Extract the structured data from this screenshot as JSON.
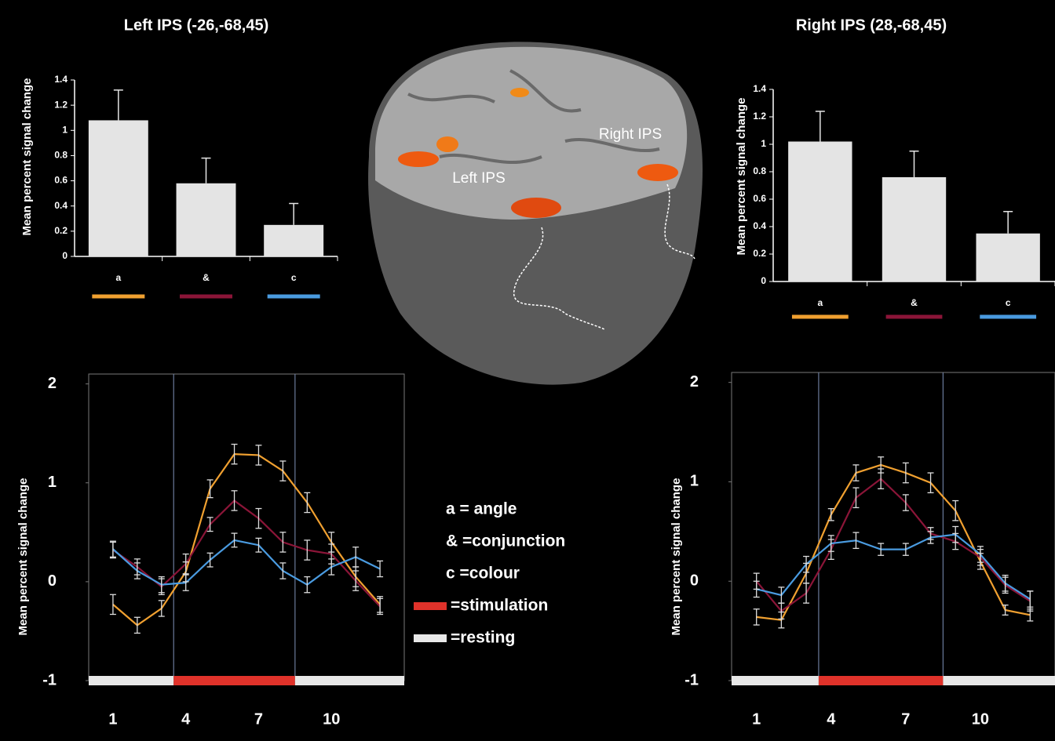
{
  "chart_data": [
    {
      "type": "bar",
      "title": "Left IPS (-26,-68,45)",
      "y_label": "Mean percent signal change",
      "categories": [
        "a",
        "&",
        "c"
      ],
      "values": [
        1.08,
        0.58,
        0.25
      ],
      "errors": [
        0.24,
        0.2,
        0.17
      ],
      "color": "#e4e4e4",
      "category_colors": [
        "#f0a030",
        "#8b1538",
        "#4a9be0"
      ],
      "ylim": [
        0,
        1.4
      ],
      "yticks": [
        0,
        0.2,
        0.4,
        0.6,
        0.8,
        1,
        1.2,
        1.4
      ]
    },
    {
      "type": "bar",
      "title": "Right IPS (28,-68,45)",
      "y_label": "Mean percent signal change",
      "categories": [
        "a",
        "&",
        "c"
      ],
      "values": [
        1.02,
        0.76,
        0.35
      ],
      "errors": [
        0.22,
        0.19,
        0.16
      ],
      "color": "#e4e4e4",
      "category_colors": [
        "#f0a030",
        "#8b1538",
        "#4a9be0"
      ],
      "ylim": [
        0,
        1.4
      ],
      "yticks": [
        0,
        0.2,
        0.4,
        0.6,
        0.8,
        1,
        1.2,
        1.4
      ]
    },
    {
      "type": "line",
      "y_label": "Mean percent signal change",
      "x": [
        1,
        2,
        3,
        4,
        5,
        6,
        7,
        8,
        9,
        10,
        11,
        12
      ],
      "series": [
        {
          "color": "#f0a030",
          "values": [
            -0.23,
            -0.44,
            -0.27,
            0.1,
            0.94,
            1.29,
            1.28,
            1.12,
            0.8,
            0.4,
            0.05,
            -0.23
          ],
          "errors": [
            0.1,
            0.08,
            0.08,
            0.1,
            0.09,
            0.1,
            0.1,
            0.1,
            0.1,
            0.1,
            0.1,
            0.08
          ]
        },
        {
          "color": "#8b1538",
          "values": [
            0.32,
            0.15,
            -0.05,
            0.18,
            0.58,
            0.82,
            0.64,
            0.4,
            0.32,
            0.28,
            0.01,
            -0.25
          ],
          "errors": [
            0.08,
            0.08,
            0.08,
            0.1,
            0.07,
            0.1,
            0.1,
            0.1,
            0.1,
            0.1,
            0.1,
            0.08
          ]
        },
        {
          "color": "#4a9be0",
          "values": [
            0.33,
            0.11,
            -0.03,
            -0.01,
            0.22,
            0.42,
            0.37,
            0.11,
            -0.03,
            0.15,
            0.25,
            0.13
          ],
          "errors": [
            0.08,
            0.08,
            0.08,
            0.08,
            0.07,
            0.07,
            0.07,
            0.08,
            0.08,
            0.08,
            0.1,
            0.08
          ]
        }
      ],
      "xlim": [
        0,
        13
      ],
      "xticks": [
        1,
        4,
        7,
        10
      ],
      "ylim": [
        -1,
        2.1
      ],
      "yticks": [
        -1,
        0,
        1,
        2
      ],
      "stimulation": [
        3.5,
        8.5
      ]
    },
    {
      "type": "line",
      "y_label": "Mean percent signal change",
      "x": [
        1,
        2,
        3,
        4,
        5,
        6,
        7,
        8,
        9,
        10,
        11,
        12
      ],
      "series": [
        {
          "color": "#f0a030",
          "values": [
            -0.36,
            -0.39,
            0.08,
            0.67,
            1.09,
            1.17,
            1.09,
            0.99,
            0.71,
            0.2,
            -0.29,
            -0.34
          ],
          "errors": [
            0.08,
            0.08,
            0.1,
            0.06,
            0.08,
            0.08,
            0.1,
            0.1,
            0.1,
            0.08,
            0.05,
            0.06
          ]
        },
        {
          "color": "#8b1538",
          "values": [
            0,
            -0.3,
            -0.12,
            0.32,
            0.84,
            1.03,
            0.79,
            0.48,
            0.4,
            0.24,
            -0.04,
            -0.2
          ],
          "errors": [
            0.08,
            0.08,
            0.1,
            0.1,
            0.1,
            0.1,
            0.08,
            0.06,
            0.08,
            0.08,
            0.08,
            0.1
          ]
        },
        {
          "color": "#4a9be0",
          "values": [
            -0.08,
            -0.14,
            0.17,
            0.38,
            0.41,
            0.32,
            0.32,
            0.44,
            0.47,
            0.27,
            -0.02,
            -0.18
          ],
          "errors": [
            0.08,
            0.08,
            0.08,
            0.08,
            0.08,
            0.06,
            0.06,
            0.06,
            0.08,
            0.08,
            0.08,
            0.08
          ]
        }
      ],
      "xlim": [
        0,
        13
      ],
      "xticks": [
        1,
        4,
        7,
        10
      ],
      "ylim": [
        -1,
        2.1
      ],
      "yticks": [
        -1,
        0,
        1,
        2
      ],
      "stimulation": [
        3.5,
        8.5
      ]
    }
  ],
  "brain_labels": [
    "Left IPS",
    "Right IPS"
  ],
  "key": {
    "items": [
      "a = angle",
      "& =conjunction",
      "c =colour"
    ],
    "stimulation": "=stimulation",
    "resting": "=resting",
    "stimulation_color": "#e0322a",
    "resting_color": "#e8e8e8"
  }
}
